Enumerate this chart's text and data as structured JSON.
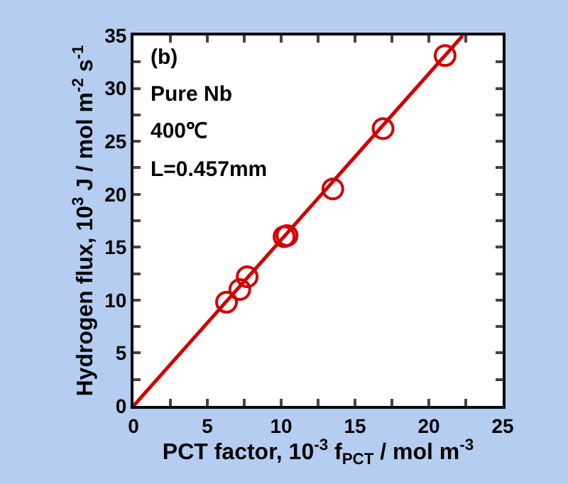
{
  "chart_data": {
    "type": "scatter",
    "xlabel": "PCT factor, 10$^{-3}$ f$_{PCT}$ / mol m$^{-3}$",
    "ylabel": "Hydrogen flux, 10$^{3}$ J / mol m$^{-2}$ s$^{-1}$",
    "annotations": [
      "(b)",
      "Pure Nb",
      "400℃",
      "L=0.457mm"
    ],
    "series": [
      {
        "color": "#d00000",
        "marker": "circle",
        "x": [
          6.3,
          7.2,
          7.7,
          10.2,
          10.4,
          13.5,
          16.9,
          21.1
        ],
        "values": [
          9.8,
          11.0,
          12.2,
          16.0,
          16.1,
          20.5,
          26.2,
          33.1
        ]
      },
      {
        "type": "line",
        "color": "#d00000",
        "line_style": "solid",
        "x": [
          0,
          22.3
        ],
        "values": [
          0,
          35
        ]
      }
    ],
    "xlim": [
      0,
      25
    ],
    "xticks": [
      0,
      {
        "value": 2.5,
        "label": null
      },
      5,
      {
        "value": 7.5,
        "label": null
      },
      10,
      {
        "value": 12.5,
        "label": null
      },
      15,
      {
        "value": 17.5,
        "label": null
      },
      20,
      {
        "value": 22.5,
        "label": null
      },
      25
    ],
    "ylim": [
      0,
      35
    ],
    "yticks": [
      0,
      {
        "value": 2.5,
        "label": null
      },
      5,
      {
        "value": 7.5,
        "label": null
      },
      10,
      {
        "value": 12.5,
        "label": null
      },
      15,
      {
        "value": 17.5,
        "label": null
      },
      20,
      {
        "value": 22.5,
        "label": null
      },
      25,
      {
        "value": 27.5,
        "label": null
      },
      30,
      {
        "value": 32.5,
        "label": null
      },
      35
    ],
    "grid": false
  }
}
